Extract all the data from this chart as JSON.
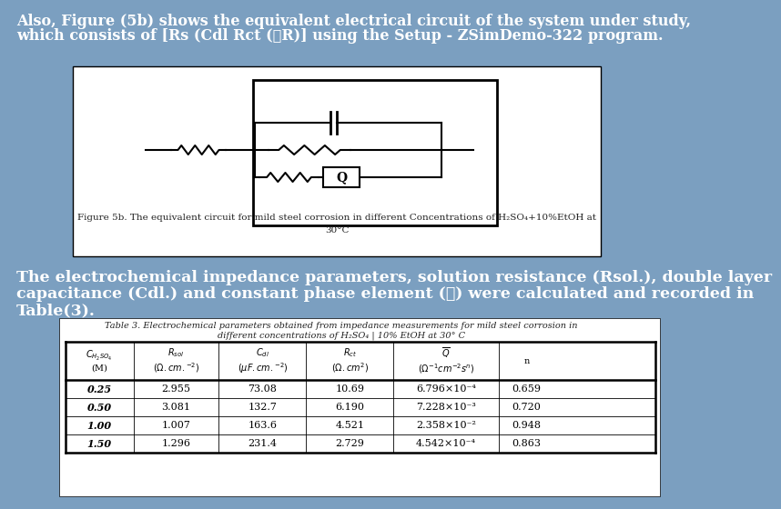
{
  "bg_color": "#7b9fc0",
  "title_line1": "Also, Figure (5b) shows the equivalent electrical circuit of the system under study,",
  "title_line2": "which consists of [Rs (Cdl Rct (ℝR)] using the Setup - ZSimDemo-322 program.",
  "figure_caption_line1": "Figure 5b. The equivalent circuit for mild steel corrosion in different Concentrations of H₂SO₄+10%EtOH at",
  "figure_caption_line2": "30°C",
  "body_line1": "The electrochemical impedance parameters, solution resistance (Rsol.), double layer",
  "body_line2": "capacitance (Cdl.) and constant phase element (𝒬) were calculated and recorded in",
  "body_line3": "Table(3).",
  "table_title_line1": "Table 3. Electrochemical parameters obtained from impedance measurements for mild steel corrosion in",
  "table_title_line2": "different concentrations of H₂SO₄ | 10% EtOH at 30° C",
  "table_data": [
    [
      "0.25",
      "2.955",
      "73.08",
      "10.69",
      "6.796×10⁻⁴",
      "0.659"
    ],
    [
      "0.50",
      "3.081",
      "132.7",
      "6.190",
      "7.228×10⁻³",
      "0.720"
    ],
    [
      "1.00",
      "1.007",
      "163.6",
      "4.521",
      "2.358×10⁻²",
      "0.948"
    ],
    [
      "1.50",
      "1.296",
      "231.4",
      "2.729",
      "4.542×10⁻⁴",
      "0.863"
    ]
  ],
  "white_color": "#ffffff",
  "black_color": "#000000",
  "text_white": "#ffffff",
  "text_dark": "#222222",
  "font_size_title": 11.5,
  "font_size_body": 12.5,
  "font_size_caption": 7.5,
  "font_size_table_title": 7,
  "font_size_table": 8
}
